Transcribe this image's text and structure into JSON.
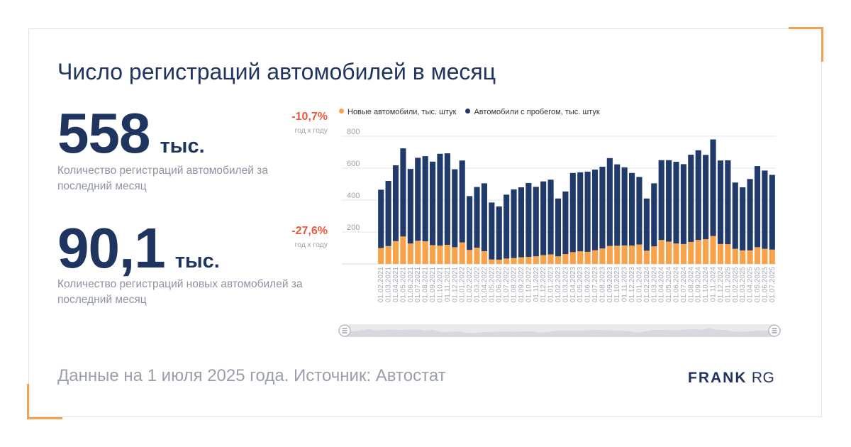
{
  "title": "Число регистраций автомобилей в месяц",
  "stat1": {
    "value": "558",
    "unit": "тыс.",
    "desc": "Количество регистраций автомобилей за последний месяц",
    "delta": "-10,7%",
    "delta_sub": "год к году"
  },
  "stat2": {
    "value": "90,1",
    "unit": "тыс.",
    "desc": "Количество регистраций новых автомобилей за последний месяц",
    "delta": "-27,6%",
    "delta_sub": "год к году"
  },
  "footer": "Данные на 1 июля 2025 года. Источник: Автостат",
  "logo": {
    "bold": "FRANK",
    "light": "RG"
  },
  "colors": {
    "new": "#f8a24b",
    "used": "#1f3a6b",
    "title": "#1f3560",
    "delta": "#e8593c"
  },
  "chart_data": {
    "type": "bar",
    "stacked": true,
    "categories": [
      "01.02.2021",
      "01.03.2021",
      "01.04.2021",
      "01.05.2021",
      "01.06.2021",
      "01.07.2021",
      "01.08.2021",
      "01.09.2021",
      "01.10.2021",
      "01.11.2021",
      "01.12.2021",
      "01.01.2022",
      "01.02.2022",
      "01.03.2022",
      "01.04.2022",
      "01.05.2022",
      "01.06.2022",
      "01.07.2022",
      "01.08.2022",
      "01.09.2022",
      "01.10.2022",
      "01.11.2022",
      "01.12.2022",
      "01.01.2023",
      "01.02.2023",
      "01.03.2023",
      "01.04.2023",
      "01.05.2023",
      "01.06.2023",
      "01.07.2023",
      "01.08.2023",
      "01.09.2023",
      "01.10.2023",
      "01.11.2023",
      "01.12.2023",
      "01.01.2024",
      "01.02.2024",
      "01.03.2024",
      "01.04.2024",
      "01.05.2024",
      "01.06.2024",
      "01.07.2024",
      "01.08.2024",
      "01.09.2024",
      "01.10.2024",
      "01.11.2024",
      "01.12.2024",
      "01.01.2025",
      "01.02.2025",
      "01.03.2025",
      "01.04.2025",
      "01.05.2025",
      "01.06.2025",
      "01.07.2025"
    ],
    "series": [
      {
        "name": "Новые автомобили, тыс. штук",
        "values": [
          100,
          112,
          143,
          172,
          128,
          145,
          142,
          118,
          115,
          120,
          105,
          135,
          88,
          102,
          80,
          28,
          27,
          34,
          37,
          42,
          44,
          48,
          55,
          60,
          48,
          62,
          74,
          79,
          76,
          86,
          97,
          113,
          114,
          116,
          115,
          122,
          83,
          110,
          150,
          140,
          128,
          125,
          138,
          150,
          155,
          175,
          125,
          124,
          95,
          85,
          85,
          105,
          95,
          90
        ]
      },
      {
        "name": "Автомобили с пробегом, тыс. штук",
        "values": [
          365,
          408,
          475,
          552,
          467,
          520,
          533,
          523,
          575,
          573,
          488,
          513,
          337,
          380,
          425,
          357,
          333,
          400,
          430,
          438,
          463,
          435,
          462,
          468,
          362,
          392,
          496,
          495,
          502,
          505,
          512,
          550,
          510,
          489,
          455,
          423,
          327,
          395,
          500,
          510,
          512,
          500,
          546,
          562,
          528,
          605,
          523,
          525,
          415,
          395,
          447,
          508,
          490,
          468
        ]
      }
    ],
    "ylim": [
      0,
      800
    ],
    "yticks": [
      200,
      400,
      600,
      800
    ],
    "legend": "top",
    "grid": true
  }
}
